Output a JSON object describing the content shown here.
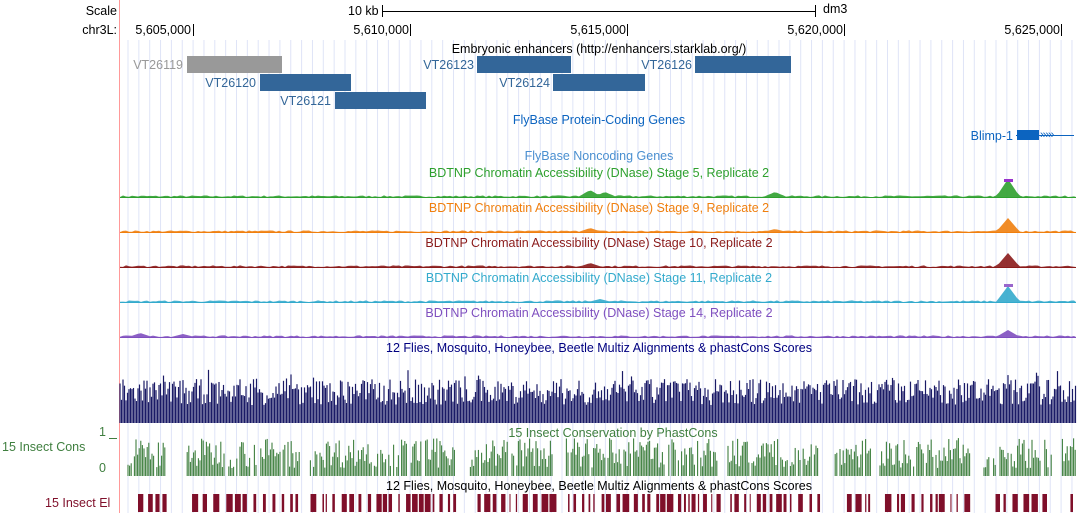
{
  "scale": {
    "label": "Scale",
    "scalebar_text": "10 kb",
    "assembly": "dm3"
  },
  "position": {
    "chrom_label": "chr3L:",
    "ticks": [
      "5,605,000",
      "5,610,000",
      "5,615,000",
      "5,620,000",
      "5,625,000"
    ]
  },
  "enhancers": {
    "title": "Embryonic enhancers (http://enhancers.starklab.org/)",
    "items": [
      {
        "label": "VT26119",
        "color": "#999999",
        "label_color": "#999999"
      },
      {
        "label": "VT26120",
        "color": "#336699",
        "label_color": "#336699"
      },
      {
        "label": "VT26121",
        "color": "#336699",
        "label_color": "#336699"
      },
      {
        "label": "VT26123",
        "color": "#336699",
        "label_color": "#336699"
      },
      {
        "label": "VT26124",
        "color": "#336699",
        "label_color": "#336699"
      },
      {
        "label": "VT26126",
        "color": "#336699",
        "label_color": "#336699"
      }
    ]
  },
  "genes": {
    "coding_title": "FlyBase Protein-Coding Genes",
    "gene_label": "Blimp-1",
    "gene_color": "#0c64c0",
    "noncoding_title": "FlyBase Noncoding Genes"
  },
  "dnase_tracks": [
    {
      "title": "BDTNP Chromatin Accessibility (DNase) Stage 5, Replicate 2",
      "color": "#2ea02e",
      "peak_color": "#9933cc"
    },
    {
      "title": "BDTNP Chromatin Accessibility (DNase) Stage 9, Replicate 2",
      "color": "#f07f0e",
      "peak_color": "#f07f0e"
    },
    {
      "title": "BDTNP Chromatin Accessibility (DNase) Stage 10, Replicate 2",
      "color": "#8a1a1a",
      "peak_color": "#8a1a1a"
    },
    {
      "title": "BDTNP Chromatin Accessibility (DNase) Stage 11, Replicate 2",
      "color": "#33aacc",
      "peak_color": "#9966cc"
    },
    {
      "title": "BDTNP Chromatin Accessibility (DNase) Stage 14, Replicate 2",
      "color": "#7f4fbf",
      "peak_color": "#7f4fbf"
    }
  ],
  "multiz": {
    "title": "12 Flies, Mosquito, Honeybee, Beetle Multiz Alignments & phastCons Scores",
    "color": "#1a1a66"
  },
  "cons": {
    "side_label": "15 Insect Cons",
    "title": "15 Insect Conservation by PhastCons",
    "ymax": "1",
    "ymin": "0",
    "color": "#3f7f3f"
  },
  "elements": {
    "title": "12 Flies, Mosquito, Honeybee, Beetle Multiz Alignments & phastCons Scores",
    "side_label": "15 Insect El",
    "color": "#7f0f2a"
  }
}
